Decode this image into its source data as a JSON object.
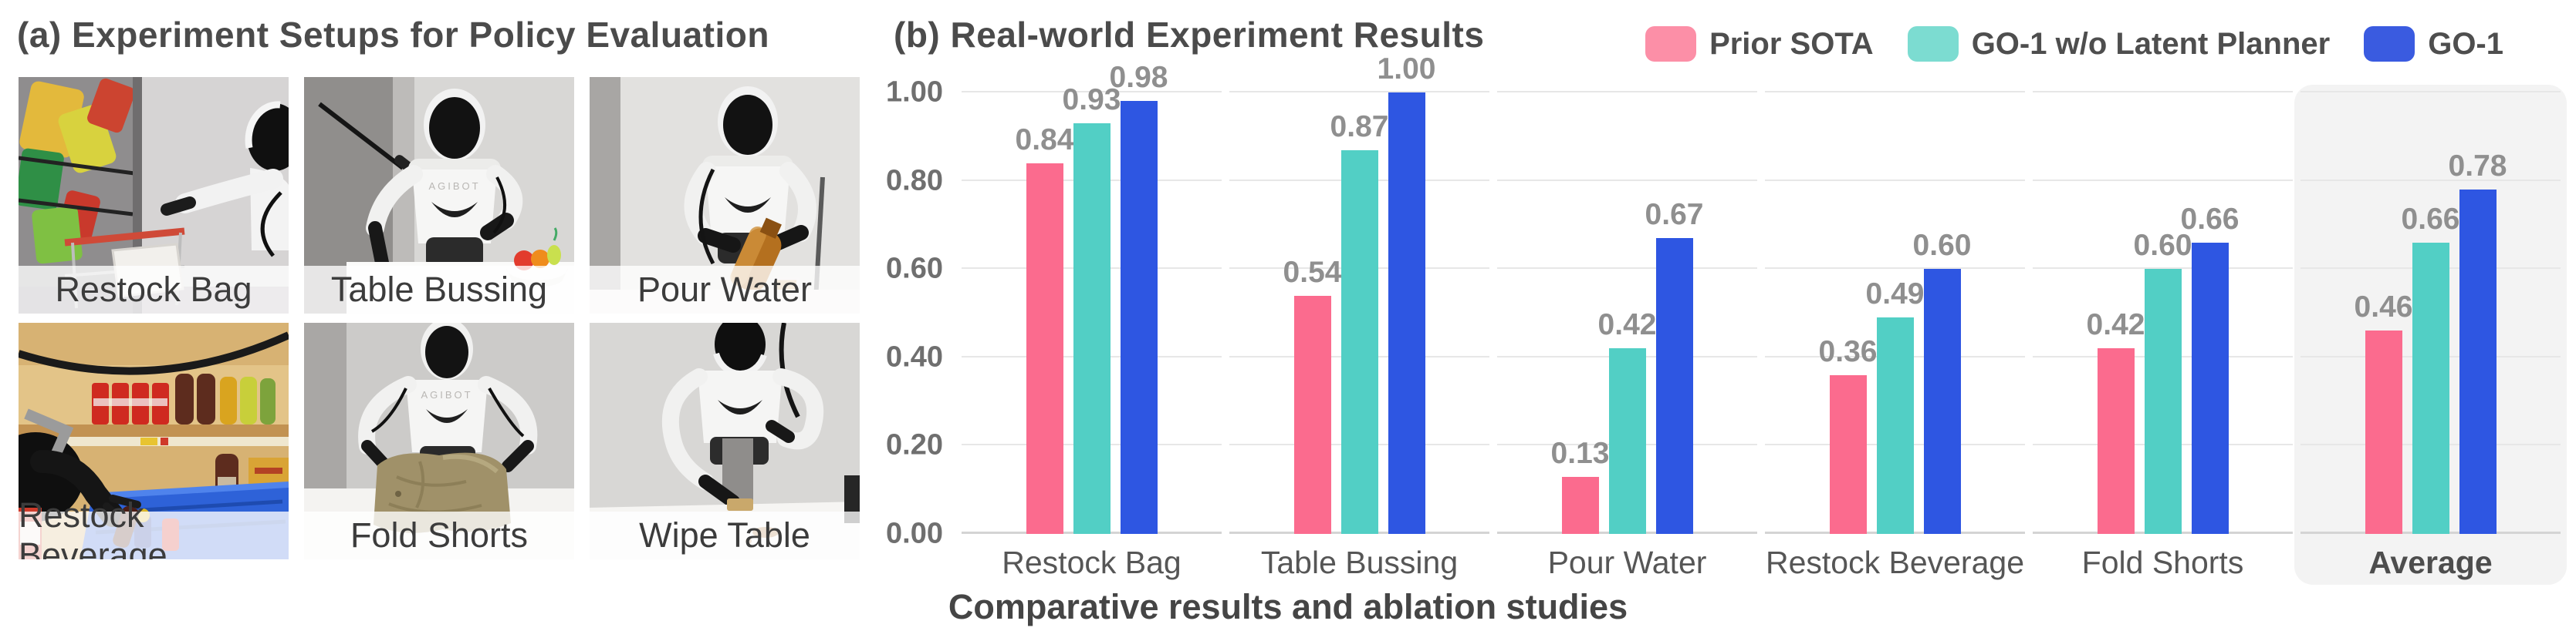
{
  "figure": {
    "panel_a": {
      "title": "(a) Experiment Setups for Policy Evaluation",
      "robot_brand": "AGIBOT",
      "photos": [
        {
          "label": "Restock Bag"
        },
        {
          "label": "Table Bussing"
        },
        {
          "label": "Pour Water"
        },
        {
          "label": "Restock Beverage"
        },
        {
          "label": "Fold Shorts"
        },
        {
          "label": "Wipe Table"
        }
      ]
    },
    "panel_b": {
      "title": "(b) Real-world Experiment Results",
      "legend": [
        {
          "label": "Prior SOTA",
          "color": "#FC8FA7"
        },
        {
          "label": "GO-1 w/o Latent Planner",
          "color": "#7CDCD1"
        },
        {
          "label": "GO-1",
          "color": "#3A5BE0"
        }
      ]
    },
    "caption": "Comparative results and ablation studies"
  },
  "chart_data": {
    "type": "bar",
    "categories": [
      "Restock Bag",
      "Table Bussing",
      "Pour Water",
      "Restock Beverage",
      "Fold Shorts",
      "Average"
    ],
    "series": [
      {
        "name": "Prior SOTA",
        "color": "#FB6B8E",
        "values": [
          0.84,
          0.54,
          0.13,
          0.36,
          0.42,
          0.46
        ]
      },
      {
        "name": "GO-1 w/o Latent Planner",
        "color": "#52CFC5",
        "values": [
          0.93,
          0.87,
          0.42,
          0.49,
          0.6,
          0.66
        ]
      },
      {
        "name": "GO-1",
        "color": "#2E56E2",
        "values": [
          0.98,
          1.0,
          0.67,
          0.6,
          0.66,
          0.78
        ]
      }
    ],
    "ylim": [
      0,
      1
    ],
    "yticks": [
      0.0,
      0.2,
      0.4,
      0.6,
      0.8,
      1.0
    ],
    "grid": true,
    "value_labels": true,
    "legend_position": "top-right",
    "highlight_category": "Average",
    "highlight_bg": "#F3F3F3",
    "grid_color": "#E7E7E7",
    "axis_line_color": "#D4D4D4",
    "value_label_color": "#8F8F8F",
    "tick_label_color": "#6F6F6F"
  }
}
